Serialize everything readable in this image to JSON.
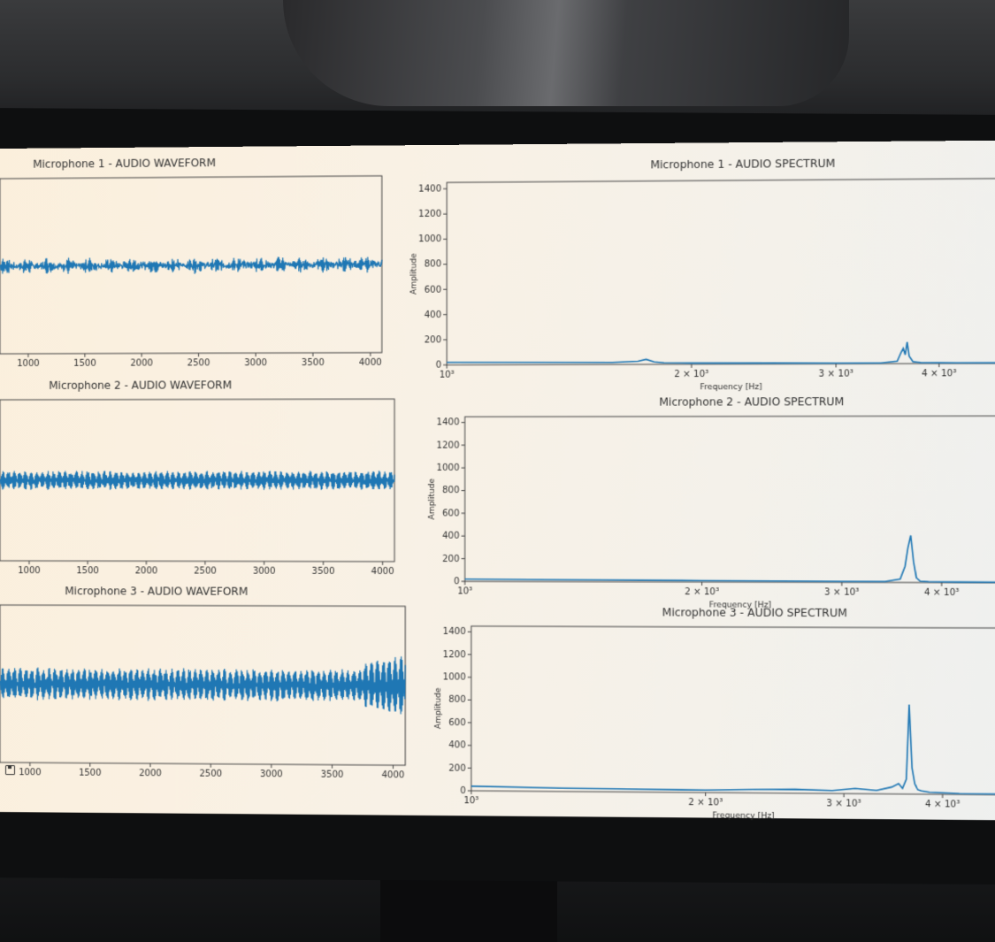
{
  "colors": {
    "series": "#1f77b4",
    "background": "#f7f0e4",
    "axis": "#333333"
  },
  "icons": {
    "save": "save-icon"
  },
  "chart_data": [
    {
      "type": "line",
      "title": "Microphone 1 - AUDIO WAVEFORM",
      "xlabel": "",
      "ylabel": "",
      "xlim": [
        750,
        4100
      ],
      "ylim": [
        -1,
        1
      ],
      "x_ticks": [
        "1000",
        "1500",
        "2000",
        "2500",
        "3000",
        "3500",
        "4000"
      ],
      "series": [
        {
          "amplitude": 0.07,
          "noise": 0.03,
          "center": 0.0,
          "slope": 0.0,
          "mod": 3
        }
      ]
    },
    {
      "type": "line",
      "title": "Microphone 2 - AUDIO WAVEFORM",
      "xlabel": "",
      "ylabel": "",
      "xlim": [
        750,
        4100
      ],
      "ylim": [
        -1,
        1
      ],
      "x_ticks": [
        "1000",
        "1500",
        "2000",
        "2500",
        "3000",
        "3500",
        "4000"
      ],
      "series": [
        {
          "amplitude": 0.1,
          "noise": 0.02,
          "center": 0.0,
          "slope": 0.0,
          "mod": 0
        }
      ]
    },
    {
      "type": "line",
      "title": "Microphone 3 - AUDIO WAVEFORM",
      "xlabel": "",
      "ylabel": "",
      "xlim": [
        750,
        4100
      ],
      "ylim": [
        -1,
        1
      ],
      "x_ticks": [
        "1000",
        "1500",
        "2000",
        "2500",
        "3000",
        "3500",
        "4000"
      ],
      "series": [
        {
          "amplitude": 0.18,
          "noise": 0.03,
          "center": 0.0,
          "slope": 0.0,
          "mod": 0
        }
      ]
    },
    {
      "type": "line",
      "title": "Microphone 1 - AUDIO SPECTRUM",
      "xlabel": "Frequency [Hz]",
      "ylabel": "Amplitude",
      "xscale": "log",
      "xlim": [
        1000,
        5000
      ],
      "ylim": [
        0,
        1450
      ],
      "y_ticks": [
        "0",
        "200",
        "400",
        "600",
        "800",
        "1000",
        "1200",
        "1400"
      ],
      "x_ticks": [
        {
          "value": 1000,
          "label": "10³"
        },
        {
          "value": 2000,
          "label": "2 × 10³"
        },
        {
          "value": 3000,
          "label": "3 × 10³"
        },
        {
          "value": 4000,
          "label": "4 × 10³"
        }
      ],
      "series": [
        {
          "x": [
            1000,
            1300,
            1600,
            1720,
            1760,
            1800,
            1850,
            2000,
            2500,
            3000,
            3400,
            3560,
            3600,
            3620,
            3640,
            3660,
            3680,
            3720,
            3800,
            4200,
            5000
          ],
          "y": [
            20,
            18,
            16,
            25,
            40,
            20,
            12,
            10,
            8,
            6,
            6,
            20,
            90,
            120,
            70,
            170,
            60,
            15,
            8,
            5,
            4
          ]
        }
      ]
    },
    {
      "type": "line",
      "title": "Microphone 2 - AUDIO SPECTRUM",
      "xlabel": "Frequency [Hz]",
      "ylabel": "Amplitude",
      "xscale": "log",
      "xlim": [
        1000,
        5000
      ],
      "ylim": [
        0,
        1450
      ],
      "y_ticks": [
        "0",
        "200",
        "400",
        "600",
        "800",
        "1000",
        "1200",
        "1400"
      ],
      "x_ticks": [
        {
          "value": 1000,
          "label": "10³"
        },
        {
          "value": 2000,
          "label": "2 × 10³"
        },
        {
          "value": 3000,
          "label": "3 × 10³"
        },
        {
          "value": 4000,
          "label": "4 × 10³"
        }
      ],
      "series": [
        {
          "x": [
            1000,
            1500,
            2000,
            2500,
            3000,
            3400,
            3550,
            3600,
            3630,
            3660,
            3690,
            3720,
            3760,
            3850,
            4200,
            5000
          ],
          "y": [
            20,
            16,
            12,
            10,
            8,
            8,
            30,
            140,
            300,
            410,
            180,
            40,
            12,
            8,
            5,
            4
          ]
        }
      ]
    },
    {
      "type": "line",
      "title": "Microphone 3 - AUDIO SPECTRUM",
      "xlabel": "Frequency [Hz]",
      "ylabel": "Amplitude",
      "xscale": "log",
      "xlim": [
        1000,
        5000
      ],
      "ylim": [
        0,
        1450
      ],
      "y_ticks": [
        "0",
        "200",
        "400",
        "600",
        "800",
        "1000",
        "1200",
        "1400"
      ],
      "x_ticks": [
        {
          "value": 1000,
          "label": "10³"
        },
        {
          "value": 2000,
          "label": "2 × 10³"
        },
        {
          "value": 3000,
          "label": "3 × 10³"
        },
        {
          "value": 4000,
          "label": "4 × 10³"
        }
      ],
      "series": [
        {
          "x": [
            1000,
            1300,
            1600,
            2000,
            2300,
            2600,
            2900,
            3100,
            3300,
            3450,
            3520,
            3560,
            3600,
            3630,
            3660,
            3690,
            3720,
            3760,
            3850,
            4200,
            5000
          ],
          "y": [
            40,
            30,
            25,
            22,
            30,
            35,
            25,
            45,
            30,
            60,
            90,
            50,
            130,
            780,
            230,
            90,
            40,
            30,
            18,
            8,
            5
          ]
        }
      ]
    }
  ]
}
